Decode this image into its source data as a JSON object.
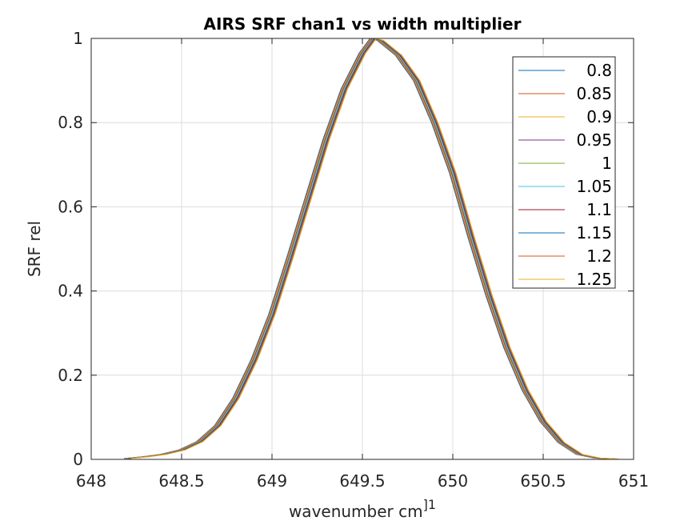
{
  "chart_data": {
    "type": "line",
    "title": "AIRS SRF chan1 vs width multiplier",
    "xlabel": "wavenumber cm",
    "xlabel_superscript": "]1",
    "ylabel": "SRF rel",
    "xlim": [
      648,
      651
    ],
    "ylim": [
      0,
      1
    ],
    "xticks": [
      "648",
      "648.5",
      "649",
      "649.5",
      "650",
      "650.5",
      "651"
    ],
    "yticks": [
      "0",
      "0.2",
      "0.4",
      "0.6",
      "0.8",
      "1"
    ],
    "grid": true,
    "legend_position": "top-right",
    "x": [
      648.2,
      648.3,
      648.4,
      648.5,
      648.6,
      648.7,
      648.8,
      648.9,
      649.0,
      649.1,
      649.2,
      649.3,
      649.4,
      649.5,
      649.56,
      649.6,
      649.7,
      649.8,
      649.9,
      650.0,
      650.1,
      650.2,
      650.3,
      650.4,
      650.5,
      650.6,
      650.7,
      650.8,
      650.9
    ],
    "series": [
      {
        "name": "0.8",
        "color": "#0072BD",
        "values": [
          0.002,
          0.006,
          0.012,
          0.022,
          0.042,
          0.08,
          0.145,
          0.235,
          0.345,
          0.48,
          0.62,
          0.76,
          0.88,
          0.965,
          1.0,
          0.995,
          0.96,
          0.9,
          0.8,
          0.68,
          0.53,
          0.39,
          0.265,
          0.165,
          0.09,
          0.04,
          0.012,
          0.003,
          0.001
        ]
      },
      {
        "name": "0.85",
        "color": "#D95319",
        "values": [
          0.002,
          0.006,
          0.012,
          0.022,
          0.042,
          0.08,
          0.145,
          0.235,
          0.345,
          0.48,
          0.62,
          0.76,
          0.88,
          0.965,
          1.0,
          0.995,
          0.96,
          0.9,
          0.8,
          0.68,
          0.53,
          0.39,
          0.265,
          0.165,
          0.09,
          0.04,
          0.012,
          0.003,
          0.001
        ]
      },
      {
        "name": "0.9",
        "color": "#EDB120",
        "values": [
          0.002,
          0.006,
          0.012,
          0.022,
          0.042,
          0.08,
          0.145,
          0.235,
          0.345,
          0.48,
          0.62,
          0.76,
          0.88,
          0.965,
          1.0,
          0.995,
          0.96,
          0.9,
          0.8,
          0.68,
          0.53,
          0.39,
          0.265,
          0.165,
          0.09,
          0.04,
          0.012,
          0.003,
          0.001
        ]
      },
      {
        "name": "0.95",
        "color": "#7E2F8E",
        "values": [
          0.002,
          0.006,
          0.012,
          0.022,
          0.042,
          0.08,
          0.145,
          0.235,
          0.345,
          0.48,
          0.62,
          0.76,
          0.88,
          0.965,
          1.0,
          0.995,
          0.96,
          0.9,
          0.8,
          0.68,
          0.53,
          0.39,
          0.265,
          0.165,
          0.09,
          0.04,
          0.012,
          0.003,
          0.001
        ]
      },
      {
        "name": "1",
        "color": "#77AC30",
        "values": [
          0.002,
          0.006,
          0.012,
          0.022,
          0.042,
          0.08,
          0.145,
          0.235,
          0.345,
          0.48,
          0.62,
          0.76,
          0.88,
          0.965,
          1.0,
          0.995,
          0.96,
          0.9,
          0.8,
          0.68,
          0.53,
          0.39,
          0.265,
          0.165,
          0.09,
          0.04,
          0.012,
          0.003,
          0.001
        ]
      },
      {
        "name": "1.05",
        "color": "#4DBEEE",
        "values": [
          0.002,
          0.006,
          0.012,
          0.022,
          0.042,
          0.08,
          0.145,
          0.235,
          0.345,
          0.48,
          0.62,
          0.76,
          0.88,
          0.965,
          1.0,
          0.995,
          0.96,
          0.9,
          0.8,
          0.68,
          0.53,
          0.39,
          0.265,
          0.165,
          0.09,
          0.04,
          0.012,
          0.003,
          0.001
        ]
      },
      {
        "name": "1.1",
        "color": "#A2142F",
        "values": [
          0.002,
          0.006,
          0.012,
          0.022,
          0.042,
          0.08,
          0.145,
          0.235,
          0.345,
          0.48,
          0.62,
          0.76,
          0.88,
          0.965,
          1.0,
          0.995,
          0.96,
          0.9,
          0.8,
          0.68,
          0.53,
          0.39,
          0.265,
          0.165,
          0.09,
          0.04,
          0.012,
          0.003,
          0.001
        ]
      },
      {
        "name": "1.15",
        "color": "#0072BD",
        "values": [
          0.002,
          0.006,
          0.012,
          0.022,
          0.042,
          0.08,
          0.145,
          0.235,
          0.345,
          0.48,
          0.62,
          0.76,
          0.88,
          0.965,
          1.0,
          0.995,
          0.96,
          0.9,
          0.8,
          0.68,
          0.53,
          0.39,
          0.265,
          0.165,
          0.09,
          0.04,
          0.012,
          0.003,
          0.001
        ]
      },
      {
        "name": "1.2",
        "color": "#D95319",
        "values": [
          0.002,
          0.006,
          0.012,
          0.022,
          0.042,
          0.08,
          0.145,
          0.235,
          0.345,
          0.48,
          0.62,
          0.76,
          0.88,
          0.965,
          1.0,
          0.995,
          0.96,
          0.9,
          0.8,
          0.68,
          0.53,
          0.39,
          0.265,
          0.165,
          0.09,
          0.04,
          0.012,
          0.003,
          0.001
        ]
      },
      {
        "name": "1.25",
        "color": "#EDB120",
        "values": [
          0.002,
          0.006,
          0.012,
          0.022,
          0.042,
          0.08,
          0.145,
          0.235,
          0.345,
          0.48,
          0.62,
          0.76,
          0.88,
          0.965,
          1.0,
          0.995,
          0.96,
          0.9,
          0.8,
          0.68,
          0.53,
          0.39,
          0.265,
          0.165,
          0.09,
          0.04,
          0.012,
          0.003,
          0.001
        ]
      }
    ]
  }
}
